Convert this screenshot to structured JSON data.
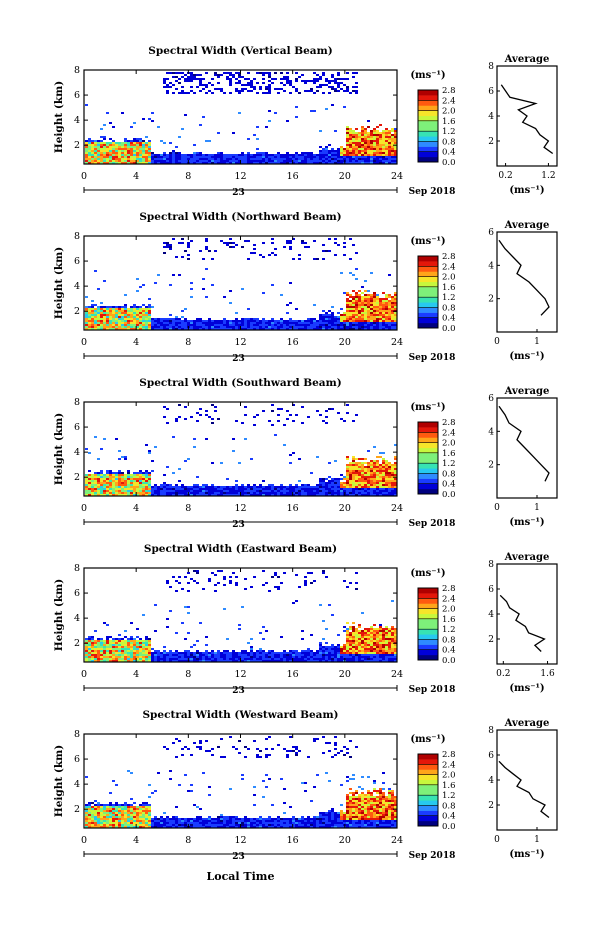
{
  "figure": {
    "xlabel": "Local Time",
    "date_label": "23",
    "month_label": "Sep 2018"
  },
  "chart_data": [
    {
      "type": "heatmap",
      "title": "Spectral Width (Vertical Beam)",
      "xlabel": "Local Time",
      "ylabel": "Height (km)",
      "xlim": [
        0,
        24
      ],
      "ylim": [
        0.5,
        8
      ],
      "xticks": [
        0,
        4,
        8,
        12,
        16,
        20,
        24
      ],
      "yticks": [
        2,
        4,
        6,
        8
      ],
      "colorbar": {
        "label": "(ms⁻¹)",
        "range": [
          0,
          2.8
        ],
        "ticks": [
          0.0,
          0.4,
          0.8,
          1.2,
          1.6,
          2.0,
          2.4,
          2.8
        ]
      },
      "average": {
        "title": "Average",
        "xlabel": "(ms⁻¹)",
        "xlim": [
          0.0,
          1.4
        ],
        "xticks": [
          0.2,
          1.2
        ],
        "ylim": [
          0,
          8
        ],
        "yticks": [
          2,
          4,
          6,
          8
        ],
        "height": [
          1.0,
          1.5,
          2.0,
          2.5,
          3.0,
          3.5,
          4.0,
          4.5,
          5.0,
          5.5,
          6.0,
          6.5
        ],
        "value": [
          1.3,
          1.1,
          1.2,
          1.0,
          0.9,
          0.6,
          0.7,
          0.5,
          0.9,
          0.3,
          0.2,
          0.1
        ]
      }
    },
    {
      "type": "heatmap",
      "title": "Spectral Width (Northward Beam)",
      "xlabel": "",
      "ylabel": "Height (km)",
      "xlim": [
        0,
        24
      ],
      "ylim": [
        0.5,
        8
      ],
      "xticks": [
        0,
        4,
        8,
        12,
        16,
        20,
        24
      ],
      "yticks": [
        2,
        4,
        6,
        8
      ],
      "colorbar": {
        "label": "(ms⁻¹)",
        "range": [
          0,
          2.8
        ],
        "ticks": [
          0.0,
          0.4,
          0.8,
          1.2,
          1.6,
          2.0,
          2.4,
          2.8
        ]
      },
      "average": {
        "title": "Average",
        "xlabel": "(ms⁻¹)",
        "xlim": [
          0,
          1.5
        ],
        "xticks": [
          0,
          1
        ],
        "ylim": [
          0,
          6
        ],
        "yticks": [
          2,
          4,
          6
        ],
        "height": [
          1.0,
          1.5,
          2.0,
          2.5,
          3.0,
          3.5,
          4.0,
          4.5,
          5.0,
          5.5
        ],
        "value": [
          1.1,
          1.3,
          1.2,
          1.0,
          0.8,
          0.5,
          0.6,
          0.4,
          0.2,
          0.05
        ]
      }
    },
    {
      "type": "heatmap",
      "title": "Spectral Width (Southward Beam)",
      "xlabel": "",
      "ylabel": "Height (km)",
      "xlim": [
        0,
        24
      ],
      "ylim": [
        0.5,
        8
      ],
      "xticks": [
        0,
        4,
        8,
        12,
        16,
        20,
        24
      ],
      "yticks": [
        2,
        4,
        6,
        8
      ],
      "colorbar": {
        "label": "(ms⁻¹)",
        "range": [
          0,
          2.8
        ],
        "ticks": [
          0.0,
          0.4,
          0.8,
          1.2,
          1.6,
          2.0,
          2.4,
          2.8
        ]
      },
      "average": {
        "title": "Average",
        "xlabel": "(ms⁻¹)",
        "xlim": [
          0,
          1.5
        ],
        "xticks": [
          0,
          1
        ],
        "ylim": [
          0,
          6
        ],
        "yticks": [
          2,
          4,
          6
        ],
        "height": [
          1.0,
          1.5,
          2.0,
          2.5,
          3.0,
          3.5,
          4.0,
          4.5,
          5.0,
          5.5
        ],
        "value": [
          1.2,
          1.3,
          1.1,
          0.9,
          0.7,
          0.5,
          0.6,
          0.3,
          0.2,
          0.05
        ]
      }
    },
    {
      "type": "heatmap",
      "title": "Spectral Width (Eastward Beam)",
      "xlabel": "",
      "ylabel": "Height (km)",
      "xlim": [
        0,
        24
      ],
      "ylim": [
        0.5,
        8
      ],
      "xticks": [
        0,
        4,
        8,
        12,
        16,
        20,
        24
      ],
      "yticks": [
        2,
        4,
        6,
        8
      ],
      "colorbar": {
        "label": "(ms⁻¹)",
        "range": [
          0,
          2.8
        ],
        "ticks": [
          0.0,
          0.4,
          0.8,
          1.2,
          1.6,
          2.0,
          2.4,
          2.8
        ]
      },
      "average": {
        "title": "Average",
        "xlabel": "(ms⁻¹)",
        "xlim": [
          0,
          1.9
        ],
        "xticks": [
          0.2,
          1.6
        ],
        "ylim": [
          0,
          8
        ],
        "yticks": [
          2,
          4,
          6,
          8
        ],
        "height": [
          1.0,
          1.5,
          2.0,
          2.5,
          3.0,
          3.5,
          4.0,
          4.5,
          5.0,
          5.5
        ],
        "value": [
          1.4,
          1.2,
          1.5,
          1.0,
          0.9,
          0.6,
          0.7,
          0.4,
          0.3,
          0.1
        ]
      }
    },
    {
      "type": "heatmap",
      "title": "Spectral Width (Westward Beam)",
      "xlabel": "Local Time",
      "ylabel": "Height (km)",
      "xlim": [
        0,
        24
      ],
      "ylim": [
        0.5,
        8
      ],
      "xticks": [
        0,
        4,
        8,
        12,
        16,
        20,
        24
      ],
      "yticks": [
        2,
        4,
        6,
        8
      ],
      "colorbar": {
        "label": "(ms⁻¹)",
        "range": [
          0,
          2.8
        ],
        "ticks": [
          0.0,
          0.4,
          0.8,
          1.2,
          1.6,
          2.0,
          2.4,
          2.8
        ]
      },
      "average": {
        "title": "Average",
        "xlabel": "(ms⁻¹)",
        "xlim": [
          0,
          1.5
        ],
        "xticks": [
          0,
          1
        ],
        "ylim": [
          0,
          8
        ],
        "yticks": [
          2,
          4,
          6,
          8
        ],
        "height": [
          1.0,
          1.5,
          2.0,
          2.5,
          3.0,
          3.5,
          4.0,
          4.5,
          5.0,
          5.5
        ],
        "value": [
          1.3,
          1.1,
          1.2,
          0.9,
          0.8,
          0.5,
          0.6,
          0.4,
          0.2,
          0.05
        ]
      }
    }
  ]
}
